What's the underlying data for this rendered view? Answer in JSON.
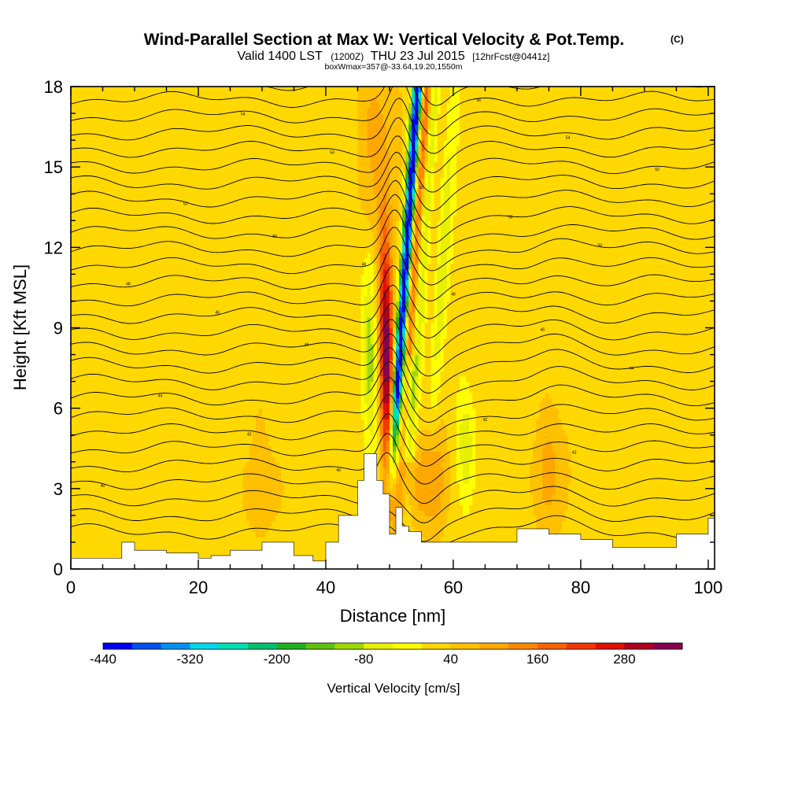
{
  "title": {
    "main": "Wind-Parallel Section at Max W: Vertical Velocity & Pot.Temp.",
    "copyright": "(C)",
    "valid_prefix": "Valid 1400 LST",
    "valid_utc": "(1200Z)",
    "valid_date": "THU 23 Jul 2015",
    "forecast": "[12hrFcst@0441z]",
    "box_info": "boxWmax=357@-33.64,19.20,1550m"
  },
  "chart_data": {
    "type": "heatmap",
    "xlabel": "Distance [nm]",
    "ylabel": "Height [Kft MSL]",
    "xlim": [
      0,
      101
    ],
    "ylim": [
      0,
      18
    ],
    "x_ticks": [
      0,
      20,
      40,
      60,
      80,
      100
    ],
    "y_ticks": [
      0,
      3,
      6,
      9,
      12,
      15,
      18
    ],
    "colorbar": {
      "label": "Vertical Velocity [cm/s]",
      "tick_values": [
        -440,
        -320,
        -200,
        -80,
        40,
        160,
        280
      ],
      "tick_labels": [
        "-440",
        "-320",
        "-200",
        "-80",
        "40",
        "160",
        "280"
      ],
      "bins": [
        -440,
        -400,
        -360,
        -320,
        -280,
        -240,
        -200,
        -160,
        -120,
        -80,
        -40,
        0,
        40,
        80,
        120,
        160,
        200,
        240,
        280,
        320,
        360
      ],
      "colors": [
        "#0000f0",
        "#0050f0",
        "#0090f0",
        "#00d8e8",
        "#00e0b0",
        "#00c070",
        "#20b020",
        "#60c010",
        "#a0d800",
        "#e8f000",
        "#ffff00",
        "#ffd800",
        "#ffc000",
        "#ffa800",
        "#ff8800",
        "#f86000",
        "#f03800",
        "#e01000",
        "#b00020",
        "#880050"
      ]
    },
    "background_value_cm_s": 20,
    "updraft_core": {
      "x": 49.5,
      "peak_w_cm_s": 357,
      "height_range_kft": [
        2.8,
        13.5
      ]
    },
    "downdraft_core": {
      "x_range": [
        48,
        53
      ],
      "min_w_cm_s": -440,
      "height_range_kft": [
        2.6,
        18
      ]
    },
    "terrain_kft": {
      "x": [
        0,
        5,
        8,
        10,
        15,
        20,
        22,
        25,
        30,
        35,
        38,
        40,
        42,
        45,
        46,
        47,
        48,
        49,
        50,
        51,
        52,
        53,
        55,
        60,
        64,
        70,
        75,
        80,
        85,
        90,
        95,
        100,
        101
      ],
      "height": [
        0.4,
        0.4,
        1.0,
        0.7,
        0.6,
        0.4,
        0.5,
        0.7,
        1.0,
        0.5,
        0.3,
        1.0,
        2.0,
        3.3,
        4.3,
        4.3,
        3.3,
        2.8,
        1.3,
        2.3,
        1.6,
        1.4,
        1.0,
        1.0,
        1.0,
        1.5,
        1.3,
        1.1,
        0.8,
        0.8,
        1.3,
        1.9,
        1.9
      ]
    },
    "theta_contour_labels": [
      "40",
      "40",
      "42",
      "42",
      "42",
      "44",
      "44",
      "44",
      "46",
      "46",
      "46",
      "48",
      "48",
      "48",
      "50",
      "50",
      "50",
      "52",
      "52",
      "52",
      "54",
      "54",
      "54",
      "56",
      "56"
    ]
  }
}
